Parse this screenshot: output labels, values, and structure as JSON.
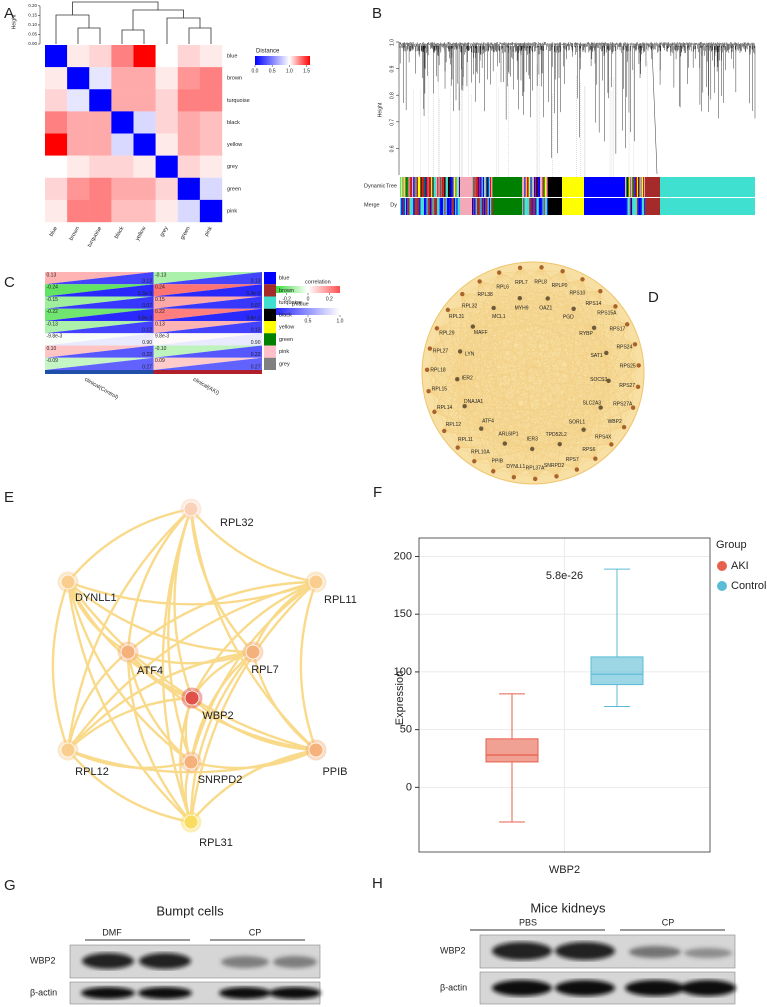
{
  "panels": [
    "A",
    "B",
    "C",
    "D",
    "E",
    "F",
    "G",
    "H"
  ],
  "heatmap": {
    "modules": [
      "blue",
      "brown",
      "turquoise",
      "black",
      "yellow",
      "grey",
      "green",
      "pink"
    ],
    "height_label": "Height",
    "height_ylim": [
      0,
      0.22
    ],
    "height_ticks": [
      {
        "value": 0,
        "label": "0.00"
      },
      0.05,
      {
        "value": 0.1,
        "label": "0.10"
      },
      0.15,
      {
        "value": 0.2,
        "label": "0.20"
      }
    ],
    "distance": [
      [
        0,
        1.05,
        1.1,
        1.3,
        1.6,
        1.0,
        1.1,
        1.05
      ],
      [
        1.05,
        0,
        0.9,
        1.2,
        1.2,
        1.05,
        1.25,
        1.3
      ],
      [
        1.1,
        0.9,
        0,
        1.2,
        1.2,
        1.1,
        1.3,
        1.3
      ],
      [
        1.3,
        1.2,
        1.2,
        0,
        0.85,
        1.1,
        1.2,
        1.15
      ],
      [
        1.6,
        1.2,
        1.2,
        0.85,
        0,
        1.05,
        1.2,
        1.15
      ],
      [
        1.0,
        1.05,
        1.1,
        1.1,
        1.05,
        0,
        1.1,
        1.05
      ],
      [
        1.1,
        1.25,
        1.3,
        1.2,
        1.2,
        1.1,
        0,
        0.85
      ],
      [
        1.05,
        1.3,
        1.3,
        1.15,
        1.15,
        1.05,
        0.85,
        0
      ]
    ],
    "legend_title": "Distance",
    "legend_lim": [
      0,
      1.6
    ],
    "legend_ticks": [
      {
        "value": 0,
        "label": "0.0"
      },
      0.5,
      {
        "value": 1,
        "label": "1.0"
      },
      1.5
    ]
  },
  "dendrogram_b": {
    "y_label": "Height",
    "ylim": [
      0.5,
      1.0
    ],
    "yticks": [
      0.6,
      0.7,
      0.8,
      0.9,
      {
        "value": 1,
        "label": "1.0"
      }
    ],
    "row_labels": [
      [
        "Dynamic",
        "Tree"
      ],
      [
        "Merge",
        "Dy"
      ]
    ]
  },
  "module_trait": {
    "modules": [
      "blue",
      "brown",
      "turquoise",
      "black",
      "yellow",
      "green",
      "pink",
      "grey"
    ],
    "columns": [
      {
        "name": "clinical(Control)",
        "corr": [
          0.13,
          -0.24,
          -0.15,
          -0.22,
          -0.13,
          -0.0098,
          0.1,
          -0.09
        ],
        "corr_labels": [
          "0.13",
          "-0.24",
          "-0.15",
          "-0.22",
          "-0.13",
          "-9.8e-3",
          "0.10",
          "-0.09"
        ],
        "p": [
          0.13,
          0.0053,
          0.07,
          0.0098,
          0.12,
          0.9,
          0.22,
          0.27
        ],
        "p_labels": [
          "0.13",
          "5.3e-3",
          "0.07",
          "9.8e-3",
          "0.12",
          "0.90",
          "0.22",
          "0.27"
        ]
      },
      {
        "name": "clinical(AKI)",
        "corr": [
          -0.13,
          0.24,
          0.15,
          0.22,
          0.13,
          0.0098,
          -0.1,
          0.09
        ],
        "corr_labels": [
          "-0.13",
          "0.24",
          "0.15",
          "0.22",
          "0.13",
          "9.8e-3",
          "-0.10",
          "0.09"
        ],
        "p": [
          0.13,
          0.0053,
          0.07,
          0.0098,
          0.12,
          0.9,
          0.22,
          0.27
        ],
        "p_labels": [
          "0.13",
          "5.3e-3",
          "0.07",
          "9.8e-3",
          "0.12",
          "0.90",
          "0.22",
          "0.27"
        ]
      }
    ],
    "corr_title": "correlation",
    "corr_lim": [
      -0.3,
      0.3
    ],
    "corr_ticks": [
      -0.2,
      0,
      0.2
    ],
    "p_title": "pValue",
    "p_lim": [
      0,
      1
    ],
    "p_ticks": [
      0.5,
      {
        "value": 1,
        "label": "1.0"
      }
    ]
  },
  "network_d": {
    "outer_genes": [
      "RPL7",
      "RPL8",
      "RPLP0",
      "RPS10",
      "RPS14",
      "RPS15A",
      "RPS17",
      "RPS24",
      "RPS25",
      "RPS27",
      "RPS27A",
      "WBP2",
      "RPS4X",
      "RPS6",
      "RPS7",
      "SNRPD2",
      "RPL37A",
      "DYNLL1",
      "PPIB",
      "RPL10A",
      "RPL11",
      "RPL12",
      "RPL14",
      "RPL15",
      "RPL18",
      "RPL27",
      "RPL29",
      "RPL31",
      "RPL32",
      "RPL38",
      "RPL6"
    ],
    "inner_genes": [
      "MYH9",
      "OAZ1",
      "PGD",
      "RYBP",
      "SAT1",
      "SOCS3",
      "SLC2A3",
      "SORL1",
      "TPD52L2",
      "IER3",
      "ARL6IP1",
      "ATF4",
      "DNAJA1",
      "IER2",
      "LYN",
      "MAFF",
      "MCL1"
    ]
  },
  "network_e": {
    "nodes": [
      {
        "label": "RPL32",
        "color": "#fad0b8"
      },
      {
        "label": "DYNLL1",
        "color": "#f9cd8c"
      },
      {
        "label": "RPL11",
        "color": "#f9cd8c"
      },
      {
        "label": "ATF4",
        "color": "#f5b07a"
      },
      {
        "label": "RPL7",
        "color": "#f5b07a"
      },
      {
        "label": "WBP2",
        "color": "#e04e48"
      },
      {
        "label": "RPL12",
        "color": "#f9cd8c"
      },
      {
        "label": "SNRPD2",
        "color": "#f5b07a"
      },
      {
        "label": "PPIB",
        "color": "#f5b07a"
      },
      {
        "label": "RPL31",
        "color": "#f9dc5c"
      }
    ]
  },
  "boxplot": {
    "title": "5.8e-26",
    "y_label": "Expression",
    "x_label": "WBP2",
    "ylim": [
      -56,
      216
    ],
    "yticks": [
      0,
      50,
      100,
      150,
      200
    ],
    "legend_title": "Group",
    "groups": [
      {
        "name": "AKI",
        "color": "#e8604c",
        "min": -30,
        "q1": 22,
        "median": 28,
        "q3": 42,
        "max": 81
      },
      {
        "name": "Control",
        "color": "#5bbcd6",
        "min": 70,
        "q1": 89,
        "median": 98,
        "q3": 113,
        "max": 189
      }
    ]
  },
  "blot_g": {
    "title": "Bumpt cells",
    "groups": [
      "DMF",
      "CP"
    ],
    "rows": [
      "WBP2",
      "β-actin"
    ]
  },
  "blot_h": {
    "title": "Mice kidneys",
    "groups": [
      "PBS",
      "CP"
    ],
    "rows": [
      "WBP2",
      "β-actin"
    ]
  }
}
